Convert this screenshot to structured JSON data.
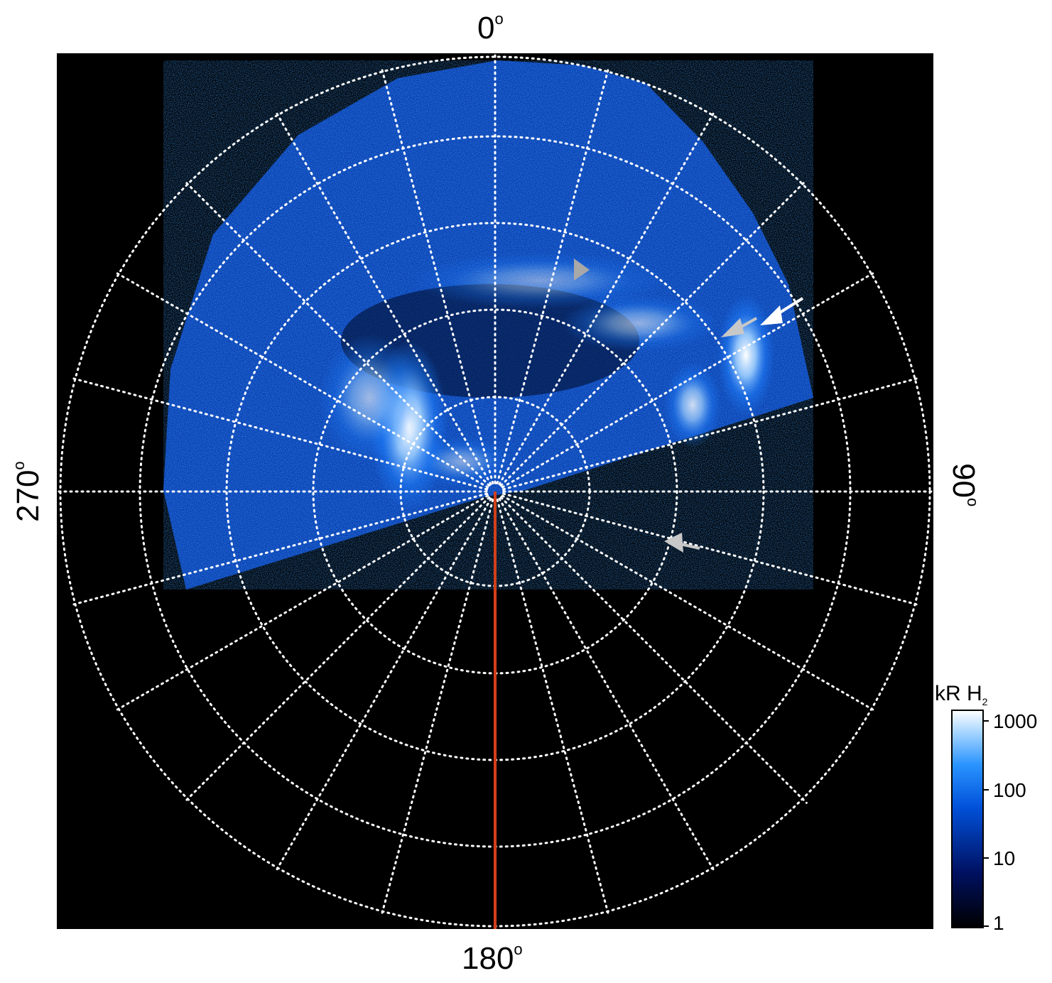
{
  "labels": {
    "top": "0",
    "bottom": "180",
    "left": "270",
    "right": "90",
    "degree": "o"
  },
  "colorbar": {
    "title": "kR H",
    "subscript": "2",
    "ticks": [
      "1000",
      "100",
      "10",
      "1"
    ]
  },
  "colors": {
    "background": "#000000",
    "grid": "#ffffff",
    "meridian_line": "#d2401a",
    "aurora_dark": "#00104a",
    "aurora_mid": "#1e7fff",
    "aurora_bright": "#ffffff",
    "arrow_white": "#ffffff",
    "arrow_gray": "#b8b8b8"
  }
}
